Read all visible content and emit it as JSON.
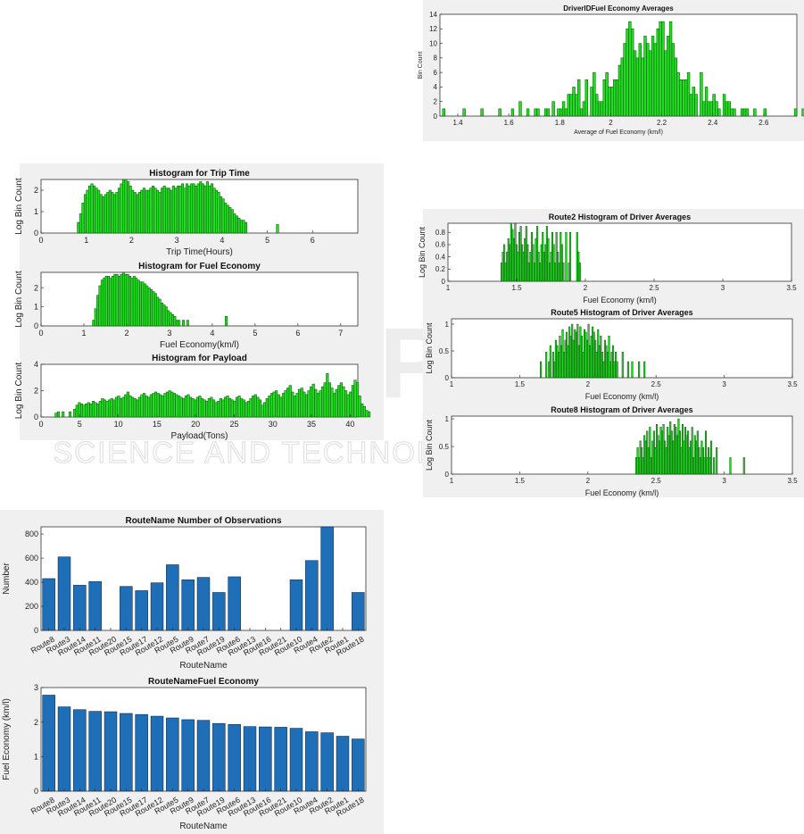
{
  "watermark": {
    "logo_text": "SCITEPRESS",
    "subtitle": "SCIENCE AND TECHNOLOGY PUBLICATIONS"
  },
  "colors": {
    "hist_fill": "#22dd22",
    "hist_edge": "#0a4a0a",
    "bar_fill": "#1f6fb8",
    "bar_edge": "#0b2a4a",
    "panel_bg": "#f0f0f0"
  },
  "chart_data": [
    {
      "id": "driverid",
      "type": "bar",
      "title": "DriverIDFuel Economy Averages",
      "xlabel": "Average of Fuel Economy (km/l)",
      "ylabel": "Bin Count",
      "xlim": [
        1.33,
        2.73
      ],
      "ylim": [
        0,
        14
      ],
      "xticks": [
        1.4,
        1.6,
        1.8,
        2,
        2.2,
        2.4,
        2.6
      ],
      "yticks": [
        0,
        2,
        4,
        6,
        8,
        10,
        12,
        14
      ],
      "grid": false,
      "x_start": 1.34,
      "bin_width": 0.01,
      "values": [
        1,
        0,
        0,
        0,
        0,
        0,
        0,
        0,
        1,
        0,
        0,
        0,
        0,
        0,
        0,
        1,
        0,
        0,
        0,
        0,
        0,
        0,
        1,
        0,
        0,
        0,
        0,
        1,
        0,
        0,
        2,
        0,
        0,
        1,
        0,
        0,
        1,
        1,
        0,
        0,
        1,
        1,
        0,
        2,
        0,
        1,
        1,
        2,
        1,
        3,
        3,
        4,
        3,
        5,
        1,
        2,
        5,
        0,
        4,
        6,
        3,
        2,
        2,
        5,
        6,
        4,
        4,
        5,
        5,
        7,
        8,
        10,
        12,
        13,
        12,
        9,
        8,
        10,
        8,
        11,
        10,
        9,
        11,
        10,
        12,
        13,
        13,
        9,
        11,
        13,
        10,
        8,
        6,
        5,
        5,
        5,
        6,
        3,
        4,
        3,
        0,
        6,
        2,
        4,
        2,
        2,
        3,
        2,
        1,
        0,
        3,
        2,
        2,
        1,
        1,
        0,
        0,
        1,
        1,
        1,
        0,
        0,
        1,
        0,
        0,
        0,
        1,
        0,
        0,
        0,
        0,
        0,
        0,
        0,
        0,
        0,
        0,
        0,
        1,
        0,
        0,
        1
      ],
      "note_x_end": 2.73
    },
    {
      "id": "triptime",
      "type": "bar",
      "title": "Histogram for Trip Time",
      "xlabel": "Trip Time(Hours)",
      "ylabel": "Log Bin Count",
      "xlim": [
        0,
        7
      ],
      "ylim": [
        0,
        2.5
      ],
      "xticks": [
        0,
        1,
        2,
        3,
        4,
        5,
        6
      ],
      "yticks": [
        0,
        1,
        2
      ],
      "grid": false,
      "x_start": 0.8,
      "bin_width": 0.05,
      "values": [
        0.5,
        0.9,
        1.4,
        1.8,
        2.0,
        2.2,
        2.3,
        2.2,
        2.1,
        2.0,
        1.8,
        1.7,
        1.8,
        1.9,
        2.0,
        1.9,
        1.8,
        1.9,
        2.1,
        2.3,
        2.5,
        2.5,
        2.4,
        2.2,
        2.0,
        1.9,
        1.8,
        1.9,
        2.0,
        2.1,
        2.0,
        2.0,
        2.1,
        2.2,
        2.1,
        2.0,
        1.9,
        2.1,
        2.2,
        2.1,
        2.1,
        2.0,
        2.2,
        2.1,
        2.2,
        2.2,
        2.3,
        2.1,
        2.3,
        2.2,
        2.3,
        2.3,
        2.2,
        2.3,
        2.4,
        2.3,
        2.2,
        2.4,
        2.2,
        2.3,
        2.1,
        2.0,
        1.9,
        1.7,
        1.6,
        1.4,
        1.3,
        1.2,
        1.1,
        0.9,
        0.8,
        0.7,
        0.6,
        0.6,
        0.5,
        0,
        0,
        0,
        0,
        0,
        0,
        0,
        0,
        0,
        0,
        0,
        0,
        0,
        0.4
      ]
    },
    {
      "id": "fueleconomy",
      "type": "bar",
      "title": "Histogram for Fuel Economy",
      "xlabel": "Fuel Economy(km/l)",
      "ylabel": "Log Bin Count",
      "xlim": [
        0,
        7.4
      ],
      "ylim": [
        0,
        2.8
      ],
      "xticks": [
        0,
        1,
        2,
        3,
        4,
        5,
        6,
        7
      ],
      "yticks": [
        0,
        1,
        2
      ],
      "grid": false,
      "x_start": 1.2,
      "bin_width": 0.05,
      "values": [
        0.3,
        0.9,
        1.6,
        2.1,
        2.4,
        2.5,
        2.6,
        2.6,
        2.5,
        2.6,
        2.7,
        2.7,
        2.6,
        2.7,
        2.8,
        2.7,
        2.7,
        2.6,
        2.5,
        2.6,
        2.5,
        2.4,
        2.3,
        2.3,
        2.2,
        2.1,
        2.0,
        1.9,
        1.8,
        1.7,
        1.5,
        1.4,
        1.2,
        1.1,
        1.0,
        0.8,
        0.7,
        0.6,
        0.5,
        0.3,
        0.3,
        0,
        0.3,
        0,
        0.3,
        0,
        0,
        0,
        0,
        0,
        0,
        0,
        0,
        0,
        0,
        0,
        0,
        0,
        0,
        0,
        0,
        0,
        0.5
      ]
    },
    {
      "id": "payload",
      "type": "bar",
      "title": "Histogram for Payload",
      "xlabel": "Payload(Tons)",
      "ylabel": "Log Bin Count",
      "xlim": [
        0,
        41
      ],
      "ylim": [
        0,
        4
      ],
      "xticks": [
        0,
        5,
        10,
        15,
        20,
        25,
        30,
        35,
        40
      ],
      "yticks": [
        0,
        2,
        4
      ],
      "grid": false,
      "x_start": 1.8,
      "bin_width": 0.3,
      "values": [
        0.3,
        0.4,
        0,
        0.4,
        0,
        0,
        0.4,
        0,
        0.6,
        0.9,
        1.1,
        1.0,
        0.9,
        1.0,
        1.1,
        1.0,
        1.2,
        1.1,
        1.0,
        1.2,
        1.4,
        1.3,
        1.2,
        1.3,
        1.4,
        1.3,
        1.5,
        1.6,
        1.4,
        1.5,
        1.7,
        1.9,
        1.6,
        1.5,
        1.4,
        1.3,
        1.5,
        1.7,
        1.8,
        1.6,
        1.5,
        1.7,
        1.8,
        1.9,
        1.8,
        1.7,
        1.6,
        1.8,
        1.9,
        2.0,
        1.9,
        1.8,
        1.7,
        1.6,
        1.5,
        1.4,
        1.6,
        1.7,
        1.5,
        1.4,
        1.3,
        1.5,
        1.6,
        1.4,
        1.3,
        1.2,
        1.4,
        1.5,
        1.3,
        1.1,
        1.2,
        1.4,
        1.3,
        1.5,
        1.6,
        1.4,
        1.3,
        1.2,
        1.5,
        1.6,
        1.4,
        1.3,
        1.1,
        1.2,
        1.4,
        1.6,
        1.7,
        1.5,
        1.3,
        0.9,
        1.1,
        1.4,
        1.6,
        1.8,
        1.9,
        2.0,
        1.7,
        1.5,
        1.8,
        2.0,
        2.2,
        2.4,
        1.9,
        1.6,
        1.8,
        2.1,
        2.2,
        1.9,
        1.7,
        2.0,
        2.3,
        2.5,
        2.1,
        1.8,
        2.0,
        2.3,
        2.6,
        3.3,
        2.6,
        2.2,
        1.8,
        2.1,
        2.4,
        2.6,
        2.3,
        2.0,
        1.7,
        1.9,
        2.4,
        2.8,
        2.6,
        1.6,
        1.0,
        0.8,
        0.5,
        0.4
      ]
    },
    {
      "id": "route2",
      "type": "bar",
      "title": "Route2 Histogram of Driver Averages",
      "xlabel": "Fuel Economy (km/l)",
      "ylabel": "Log Bin Count",
      "xlim": [
        1,
        3.5
      ],
      "ylim": [
        0,
        0.95
      ],
      "xticks": [
        1,
        1.5,
        2,
        2.5,
        3,
        3.5
      ],
      "yticks": [
        0,
        0.2,
        0.4,
        0.6,
        0.8
      ],
      "grid": false,
      "x_start": 1.385,
      "bin_width": 0.01,
      "values": [
        0.3,
        0.48,
        0.6,
        0.3,
        0.48,
        0.7,
        0.6,
        0.95,
        0.85,
        0.7,
        0.95,
        0.6,
        0.48,
        0.8,
        0.9,
        0.6,
        0.48,
        0.7,
        0.9,
        0.6,
        0.3,
        0.48,
        0.8,
        0.6,
        0.3,
        0.7,
        0.9,
        0.48,
        0.3,
        0.6,
        0.8,
        0.48,
        0.6,
        0.9,
        0.7,
        0.3,
        0.48,
        0.8,
        0.6,
        0.3,
        0.8,
        0.48,
        0.3,
        0.8,
        0.6,
        0.3,
        0,
        0.8,
        0,
        0.3,
        0.8,
        0,
        0,
        0,
        0,
        0.8,
        0.48,
        0.3
      ]
    },
    {
      "id": "route5",
      "type": "bar",
      "title": "Route5 Histogram of Driver Averages",
      "xlabel": "Fuel Economy (km/l)",
      "ylabel": "Log Bin Count",
      "xlim": [
        1,
        3.5
      ],
      "ylim": [
        0,
        1.1
      ],
      "xticks": [
        1,
        1.5,
        2,
        2.5,
        3,
        3.5
      ],
      "yticks": [
        0,
        0.5,
        1
      ],
      "grid": false,
      "x_start": 1.65,
      "bin_width": 0.01,
      "values": [
        0.3,
        0,
        0,
        0,
        0.48,
        0,
        0.3,
        0.6,
        0,
        0.48,
        0.3,
        0.7,
        0.6,
        0.48,
        0.78,
        0.6,
        0.9,
        0.48,
        0.7,
        0.85,
        0.6,
        0.95,
        0.78,
        1.0,
        0.7,
        0.9,
        0.85,
        1.0,
        0.6,
        0.95,
        0.78,
        0.48,
        0.9,
        0.85,
        0.7,
        1.0,
        0.6,
        0.78,
        0.95,
        0.85,
        0.7,
        0.48,
        0.9,
        0.6,
        0.78,
        0.48,
        0.3,
        0.7,
        0.6,
        0.48,
        0.78,
        0.3,
        0.48,
        0.6,
        0.3,
        0.48,
        0.3,
        0,
        0,
        0,
        0.48,
        0,
        0,
        0,
        0.3,
        0,
        0,
        0.3,
        0,
        0,
        0,
        0,
        0.3,
        0,
        0,
        0,
        0.3
      ]
    },
    {
      "id": "route8",
      "type": "bar",
      "title": "Route8 Histogram of Driver Averages",
      "xlabel": "Fuel Economy (km/l)",
      "ylabel": "Log Bin Count",
      "xlim": [
        1,
        3.5
      ],
      "ylim": [
        0,
        1.05
      ],
      "xticks": [
        1,
        1.5,
        2,
        2.5,
        3,
        3.5
      ],
      "yticks": [
        0,
        0.5,
        1
      ],
      "grid": false,
      "x_start": 2.35,
      "bin_width": 0.01,
      "values": [
        0.3,
        0.48,
        0.3,
        0.6,
        0.48,
        0.3,
        0.7,
        0.6,
        0.78,
        0.48,
        0.85,
        0.3,
        0.6,
        0.78,
        0.48,
        0.9,
        0.7,
        0.6,
        0.85,
        0.78,
        0.9,
        0.6,
        0.48,
        0.85,
        0.7,
        0.95,
        0.78,
        0.6,
        0.9,
        0.85,
        0.7,
        1.0,
        0.78,
        0.48,
        0.9,
        0.6,
        0.85,
        0.7,
        0.78,
        0.48,
        0.6,
        0.85,
        0.3,
        0.7,
        0.6,
        0.78,
        0.48,
        0.3,
        0.6,
        0.48,
        0.3,
        0.78,
        0.3,
        0.48,
        0.3,
        0.6,
        0,
        0.3,
        0,
        0.48,
        0,
        0,
        0,
        0,
        0,
        0,
        0,
        0,
        0,
        0.3,
        0,
        0,
        0,
        0,
        0,
        0,
        0,
        0,
        0,
        0.3
      ]
    },
    {
      "id": "routeobs",
      "type": "bar",
      "title": "RouteName Number of Observations",
      "xlabel": "RouteName",
      "ylabel": "Number",
      "categories": [
        "Route8",
        "Route3",
        "Route14",
        "Route11",
        "Route20",
        "Route15",
        "Route17",
        "Route12",
        "Route5",
        "Route9",
        "Route7",
        "Route19",
        "Route6",
        "Route13",
        "Route16",
        "Route21",
        "Route10",
        "Route4",
        "Route2",
        "Route1",
        "Route18"
      ],
      "values": [
        430,
        610,
        375,
        405,
        0,
        365,
        330,
        395,
        545,
        420,
        440,
        315,
        445,
        0,
        0,
        0,
        420,
        580,
        860,
        0,
        315
      ],
      "ylim": [
        0,
        860
      ],
      "yticks": [
        0,
        200,
        400,
        600,
        800
      ],
      "grid": false
    },
    {
      "id": "routefuel",
      "type": "bar",
      "title": "RouteNameFuel Economy",
      "xlabel": "RouteName",
      "ylabel": "Fuel Economy (km/l)",
      "categories": [
        "Route8",
        "Route3",
        "Route14",
        "Route11",
        "Route20",
        "Route15",
        "Route17",
        "Route12",
        "Route5",
        "Route9",
        "Route7",
        "Route19",
        "Route6",
        "Route13",
        "Route16",
        "Route21",
        "Route10",
        "Route4",
        "Route2",
        "Route1",
        "Route18"
      ],
      "values": [
        2.78,
        2.44,
        2.36,
        2.31,
        2.3,
        2.25,
        2.22,
        2.17,
        2.12,
        2.07,
        2.05,
        1.96,
        1.93,
        1.87,
        1.86,
        1.85,
        1.82,
        1.72,
        1.69,
        1.59,
        1.51
      ],
      "ylim": [
        0,
        3
      ],
      "yticks": [
        0,
        1,
        2,
        3
      ],
      "grid": false
    }
  ]
}
